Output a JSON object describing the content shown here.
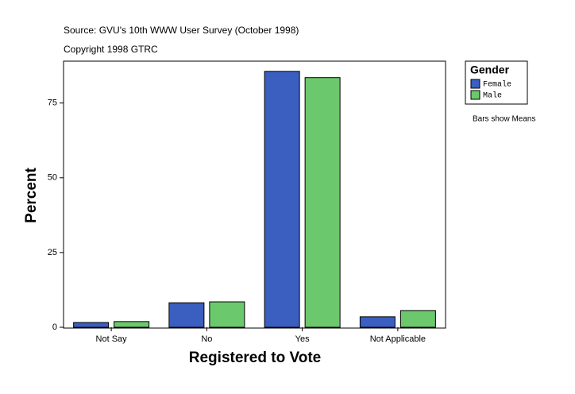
{
  "chart_data": {
    "type": "bar",
    "source": "Source: GVU's 10th WWW User Survey (October 1998)",
    "copyright": "Copyright 1998 GTRC",
    "x_label": "Registered to Vote",
    "y_label": "Percent",
    "legend_title": "Gender",
    "note": "Bars show Means",
    "categories": [
      "Not Say",
      "No",
      "Yes",
      "Not Applicable"
    ],
    "series": [
      {
        "name": "Female",
        "color": "#3b5fc0",
        "values": [
          1.6,
          8.2,
          85.6,
          3.5
        ]
      },
      {
        "name": "Male",
        "color": "#6cc86c",
        "values": [
          1.9,
          8.5,
          83.5,
          5.6
        ]
      }
    ],
    "ylim": [
      0,
      89
    ],
    "yticks": [
      0,
      25,
      50,
      75
    ]
  }
}
